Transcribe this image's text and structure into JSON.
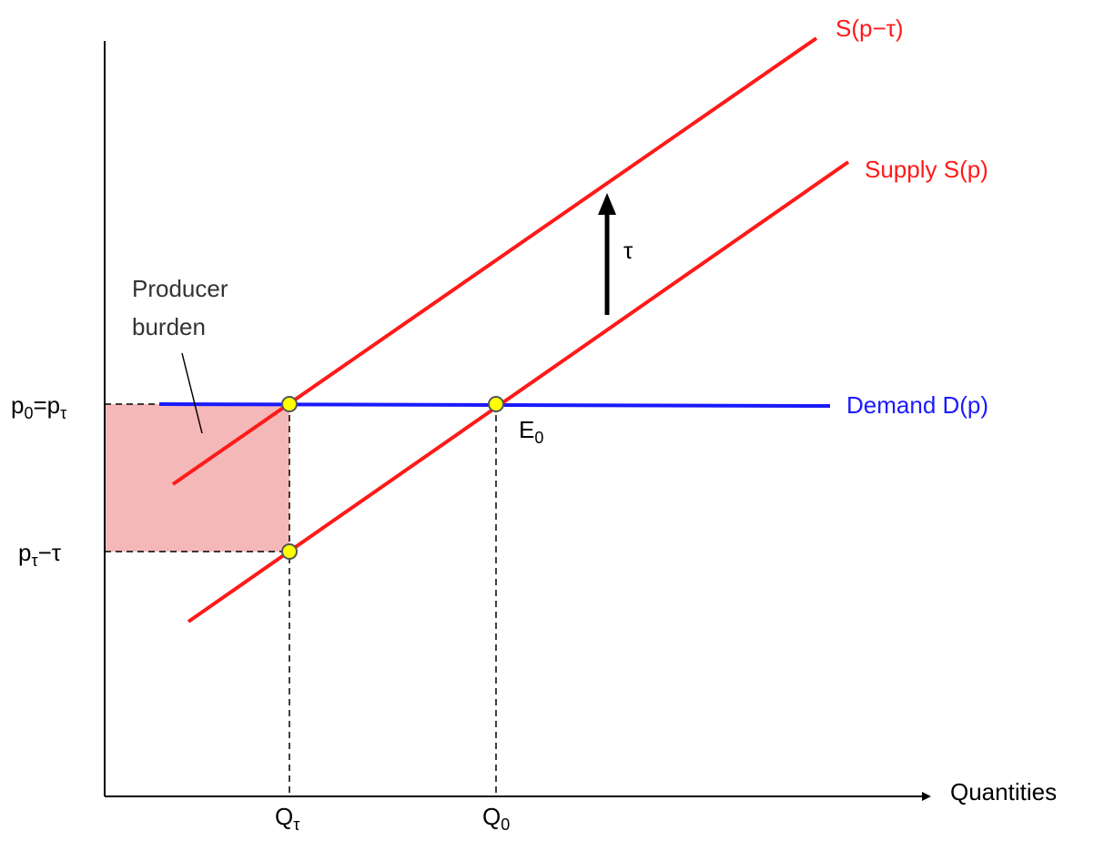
{
  "labels": {
    "tax_supply": "S(p−τ)",
    "supply": "Supply S(p)",
    "tax_arrow": "τ",
    "producer_burden": [
      "Producer",
      "burden"
    ],
    "demand": "Demand D(p)",
    "equilibrium": [
      {
        "text": "E"
      },
      {
        "text": "0",
        "sub": true
      }
    ],
    "price_high": [
      {
        "text": "p"
      },
      {
        "text": "0",
        "sub": true
      },
      {
        "text": "=p"
      },
      {
        "text": "τ",
        "sub": true
      }
    ],
    "price_low": [
      {
        "text": "p"
      },
      {
        "text": "τ",
        "sub": true
      },
      {
        "text": "−τ"
      }
    ],
    "quantity_tax": [
      {
        "text": "Q"
      },
      {
        "text": "τ",
        "sub": true
      }
    ],
    "quantity_0": [
      {
        "text": "Q"
      },
      {
        "text": "0",
        "sub": true
      }
    ],
    "x_axis": "Quantities"
  }
}
